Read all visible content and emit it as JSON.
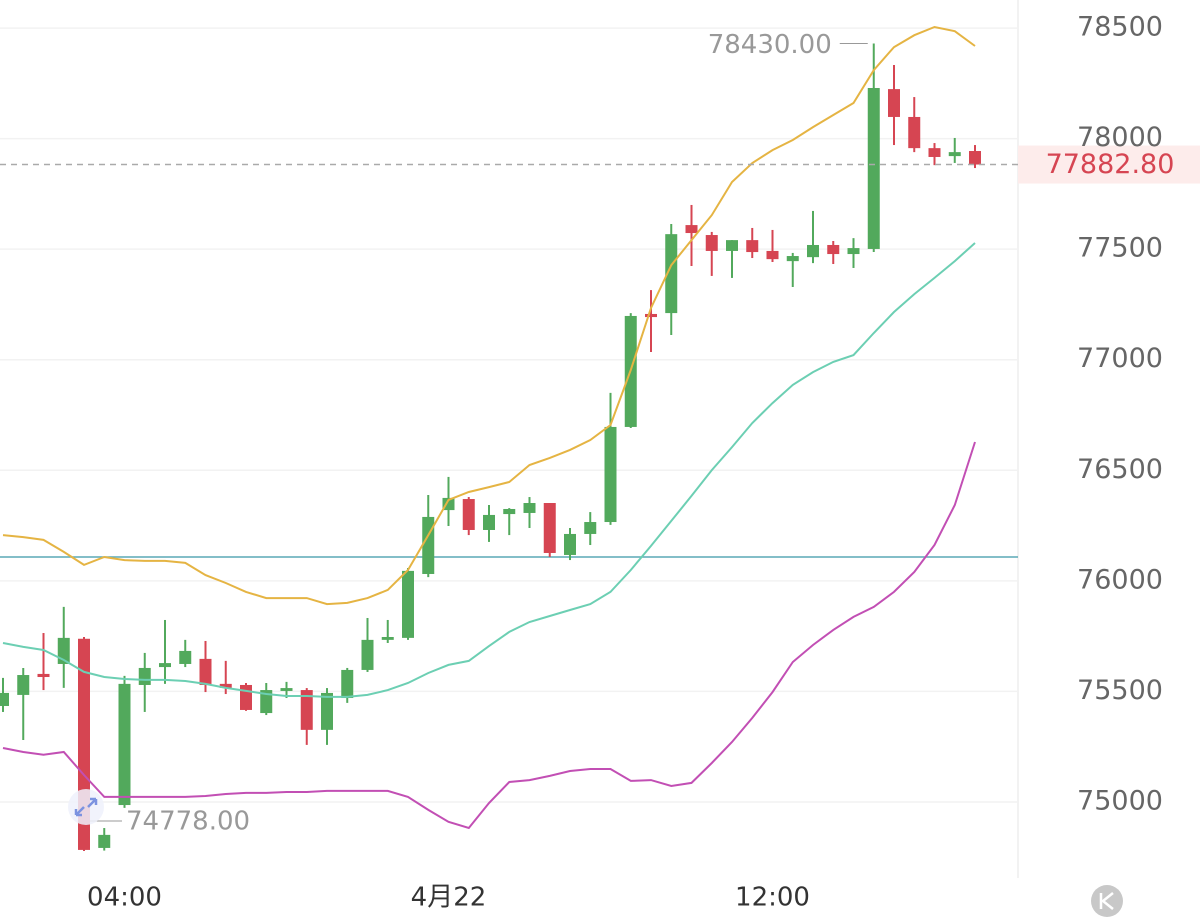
{
  "chart_data": {
    "type": "candlestick",
    "categories": [
      null,
      null,
      null,
      null,
      null,
      null,
      "04:00",
      null,
      null,
      null,
      null,
      null,
      null,
      null,
      null,
      null,
      null,
      null,
      null,
      null,
      null,
      null,
      "4月22",
      null,
      null,
      null,
      null,
      null,
      null,
      null,
      null,
      null,
      null,
      null,
      null,
      null,
      null,
      null,
      "12:00",
      null,
      null,
      null,
      null,
      null,
      null,
      null,
      null,
      null,
      null
    ],
    "open": [
      75434,
      75484,
      75579,
      75624,
      75738,
      74792,
      74986,
      75529,
      75610,
      75624,
      75647,
      75534,
      75529,
      75402,
      75502,
      75506,
      75326,
      75470,
      75597,
      75733,
      75742,
      76031,
      76320,
      76370,
      76230,
      76302,
      76307,
      76352,
      76117,
      76212,
      76266,
      76696,
      77207,
      77211,
      77609,
      77564,
      77492,
      77541,
      77492,
      77446,
      77464,
      77519,
      77478,
      77501,
      78224,
      78098,
      77957,
      77921,
      77944
    ],
    "high": [
      75561,
      75606,
      75764,
      75882,
      75746,
      74882,
      75570,
      75674,
      75823,
      75733,
      75728,
      75638,
      75538,
      75538,
      75543,
      75515,
      75515,
      75606,
      75832,
      75823,
      76058,
      76388,
      76470,
      76379,
      76343,
      76329,
      76379,
      76352,
      76239,
      76311,
      76850,
      77211,
      77315,
      77614,
      77700,
      77578,
      77541,
      77596,
      77587,
      77483,
      77673,
      77537,
      77550,
      78430,
      78333,
      78188,
      77980,
      78003,
      77971
    ],
    "low": [
      75407,
      75280,
      75506,
      75516,
      74778,
      74780,
      74973,
      75407,
      75534,
      75610,
      75497,
      75488,
      75412,
      75393,
      75470,
      75258,
      75258,
      75448,
      75588,
      75719,
      75733,
      76017,
      76248,
      76207,
      76176,
      76207,
      76239,
      76108,
      76094,
      76162,
      76253,
      76691,
      77035,
      77112,
      77424,
      77379,
      77370,
      77460,
      77442,
      77329,
      77437,
      77433,
      77415,
      77487,
      77971,
      77939,
      77880,
      77890,
      77867
    ],
    "close": [
      75493,
      75574,
      75565,
      75742,
      74783,
      74851,
      75534,
      75606,
      75628,
      75683,
      75529,
      75516,
      75416,
      75506,
      75515,
      75326,
      75493,
      75597,
      75733,
      75746,
      76045,
      76289,
      76375,
      76230,
      76298,
      76325,
      76352,
      76126,
      76212,
      76266,
      76696,
      77198,
      77193,
      77568,
      77573,
      77492,
      77541,
      77487,
      77455,
      77469,
      77519,
      77478,
      77505,
      78229,
      78098,
      77957,
      77917,
      77939,
      77882.8
    ],
    "up_color": "#52a95c",
    "down_color": "#d64552",
    "lines": [
      {
        "color": "#e5b443",
        "values": [
          76207,
          76198,
          76185,
          76131,
          76072,
          76108,
          76094,
          76090,
          76090,
          76081,
          76026,
          75990,
          75950,
          75922,
          75922,
          75922,
          75895,
          75900,
          75922,
          75959,
          76049,
          76207,
          76366,
          76402,
          76424,
          76447,
          76524,
          76556,
          76592,
          76637,
          76705,
          76954,
          77234,
          77428,
          77541,
          77654,
          77804,
          77890,
          77948,
          77994,
          78052,
          78107,
          78161,
          78310,
          78414,
          78468,
          78505,
          78486,
          78419
        ]
      },
      {
        "color": "#6ccfb3",
        "values": [
          75719,
          75701,
          75687,
          75642,
          75588,
          75565,
          75556,
          75552,
          75552,
          75547,
          75534,
          75516,
          75502,
          75488,
          75479,
          75479,
          75475,
          75475,
          75484,
          75506,
          75538,
          75583,
          75620,
          75638,
          75705,
          75769,
          75814,
          75841,
          75868,
          75895,
          75950,
          76049,
          76158,
          76271,
          76384,
          76501,
          76605,
          76714,
          76804,
          76886,
          76944,
          76990,
          77021,
          77121,
          77216,
          77297,
          77370,
          77446,
          77528
        ]
      },
      {
        "color": "#c24fb4",
        "values": [
          75244,
          75226,
          75213,
          75226,
          75122,
          75023,
          75023,
          75023,
          75023,
          75023,
          75027,
          75036,
          75041,
          75041,
          75045,
          75045,
          75050,
          75050,
          75050,
          75050,
          75023,
          74964,
          74910,
          74882,
          74995,
          75090,
          75099,
          75118,
          75140,
          75149,
          75149,
          75095,
          75099,
          75072,
          75086,
          75176,
          75271,
          75380,
          75497,
          75633,
          75710,
          75778,
          75837,
          75882,
          75950,
          76040,
          76162,
          76343,
          76628
        ]
      }
    ],
    "reference_line": {
      "value": 76108,
      "color": "#5aa9b5"
    },
    "last_price": {
      "value": 77882.8,
      "label": "77882.80"
    },
    "high_annotation": {
      "index": 43,
      "value": 78430,
      "label": "78430.00"
    },
    "low_annotation": {
      "index": 4,
      "value": 74778,
      "label": "74778.00"
    },
    "ylim": [
      74656,
      78627
    ],
    "yticks": [
      75000,
      75500,
      76000,
      76500,
      77000,
      77500,
      78000,
      78500
    ],
    "grid": true
  }
}
